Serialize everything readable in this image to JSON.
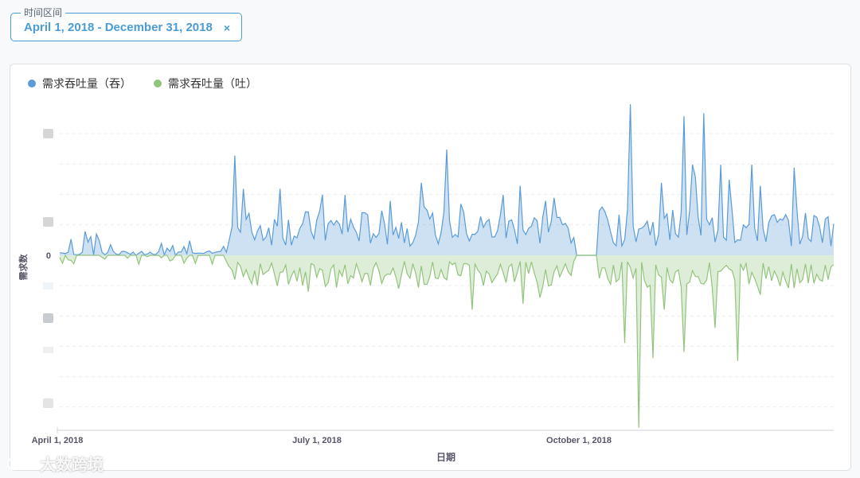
{
  "filter": {
    "label": "时间区间",
    "value": "April 1, 2018 - December 31, 2018",
    "clear_icon": "×"
  },
  "legend": [
    {
      "name": "需求吞吐量（吞）",
      "color": "#5a9bd8"
    },
    {
      "name": "需求吞吐量（吐）",
      "color": "#93c47d"
    }
  ],
  "chart_data": {
    "type": "area",
    "xlabel": "日期",
    "ylabel": "需求数",
    "x_start": "2018-04-01",
    "x_end": "2018-12-31",
    "x_tick_labels": [
      "April 1, 2018",
      "July 1, 2018",
      "October 1, 2018"
    ],
    "y_tick_labels": [
      "0"
    ],
    "grid": true,
    "legend_position": "top-left",
    "series": [
      {
        "name": "需求吞吐量（吞）",
        "color": "#5a9bd8",
        "values": [
          0,
          0,
          1,
          0,
          0,
          0,
          0,
          0,
          0,
          0,
          1,
          0,
          0,
          0,
          0,
          0,
          0,
          0,
          0,
          0,
          1,
          0,
          0,
          0,
          0,
          0,
          0,
          0,
          0,
          0,
          0,
          0,
          0,
          0,
          1,
          0,
          0,
          0,
          0,
          0,
          0,
          0,
          0,
          0,
          1,
          0,
          1,
          0,
          0,
          0,
          0,
          0,
          0,
          0,
          0,
          0,
          0,
          0,
          0,
          0,
          0,
          0,
          0,
          0,
          1,
          0,
          0,
          0,
          0,
          0,
          0,
          0,
          1,
          0,
          0,
          0,
          1,
          3,
          0,
          1,
          0,
          0,
          0,
          0,
          0,
          0,
          0,
          0,
          1,
          0,
          0,
          1,
          0,
          0,
          0,
          0,
          1,
          3,
          0,
          1,
          0,
          1,
          0,
          2,
          0,
          0,
          1,
          0,
          0,
          0,
          0,
          0,
          0,
          0,
          1,
          0,
          2,
          0,
          0,
          0,
          0,
          0,
          1,
          0,
          1,
          0,
          1,
          0,
          0,
          0,
          0,
          0,
          1,
          0,
          0,
          0,
          1,
          0,
          0,
          0,
          0,
          0,
          0,
          0,
          0,
          0,
          0,
          0,
          0,
          0,
          1,
          0,
          0,
          0,
          0,
          0,
          0,
          0,
          0,
          0,
          0,
          0,
          0,
          0,
          0,
          0,
          1,
          0,
          0,
          0,
          0,
          1,
          0,
          0,
          0,
          0,
          0,
          0,
          0,
          0,
          0,
          0,
          0,
          0,
          2,
          0,
          0,
          0,
          0,
          0,
          0,
          0,
          0,
          0,
          0,
          0,
          0,
          0,
          0,
          0,
          1,
          0,
          0,
          0,
          1,
          3,
          0,
          1,
          0,
          0,
          0,
          0,
          0,
          0,
          0,
          0,
          1,
          0,
          0,
          1,
          0,
          0,
          0,
          0,
          1,
          3,
          0,
          1,
          0,
          1,
          0,
          2,
          0,
          0,
          1,
          0,
          0,
          0,
          0,
          0,
          0,
          0,
          1,
          0,
          2,
          0,
          0,
          0,
          0,
          0,
          1,
          0,
          1,
          0,
          1,
          0,
          0,
          0,
          0,
          0,
          1,
          0,
          0,
          0,
          0,
          0,
          0,
          0,
          0,
          0,
          0,
          0,
          0,
          0,
          0,
          0,
          0,
          0,
          0,
          0,
          0,
          0,
          0,
          0,
          0,
          0,
          0,
          0,
          0,
          0,
          0,
          0,
          0,
          0
        ]
      },
      {
        "name": "需求吞吐量（吐）",
        "color": "#93c47d",
        "values": [
          0,
          0,
          0,
          0,
          0,
          0,
          0,
          0,
          0,
          0,
          0,
          0,
          0,
          0,
          0,
          0,
          0,
          0,
          0,
          0,
          0,
          0,
          0,
          0,
          0,
          0,
          0,
          0,
          0,
          0,
          0,
          0,
          0,
          0,
          0,
          0,
          0,
          0,
          0,
          0,
          0,
          0,
          0,
          0,
          0,
          0,
          0,
          0,
          0,
          0,
          0,
          0,
          0,
          0,
          0,
          0,
          0,
          0,
          0,
          0,
          0,
          0,
          0,
          0,
          0,
          0,
          0,
          0,
          0,
          0,
          0,
          0,
          0,
          0,
          0,
          0,
          0,
          0,
          0,
          0,
          0,
          0,
          0,
          0,
          0,
          0,
          0,
          0,
          0,
          0,
          0,
          0,
          0,
          0,
          0,
          0,
          0,
          0,
          0,
          0,
          0,
          0,
          0,
          0,
          0,
          0,
          0,
          0,
          0,
          0,
          0,
          0,
          0,
          0,
          0,
          0,
          0,
          0,
          0,
          0,
          0,
          0,
          0,
          0,
          0,
          0,
          0,
          0,
          0,
          0,
          0,
          0,
          0,
          0,
          0,
          0,
          0,
          0,
          0,
          0,
          0,
          0,
          0,
          0,
          0,
          0,
          0,
          0,
          0,
          0,
          0,
          0,
          0,
          0,
          0,
          0,
          0,
          0,
          0,
          0,
          0,
          0,
          0,
          0,
          0,
          0,
          0,
          0,
          0,
          0,
          0,
          0,
          0,
          0,
          0,
          0,
          0,
          0,
          0,
          0,
          0,
          0,
          0,
          0,
          0,
          0,
          0,
          0,
          0,
          0,
          0,
          0,
          0,
          0,
          0,
          0,
          0,
          0,
          0,
          0,
          0,
          0,
          0,
          0,
          0,
          0,
          0,
          0,
          0,
          0,
          0,
          0,
          0,
          0,
          0,
          0,
          0,
          0,
          0,
          0,
          0,
          0,
          0,
          0,
          0,
          0,
          0,
          0,
          0,
          0,
          0,
          0,
          0,
          0,
          0,
          0,
          0,
          0,
          0,
          0,
          0,
          0,
          0,
          0,
          0,
          0,
          0,
          0,
          0,
          0,
          0,
          0,
          0,
          0,
          0,
          0,
          0,
          0,
          0,
          0,
          0,
          0,
          0,
          0,
          0,
          0,
          0,
          0,
          0,
          0,
          0,
          0,
          0,
          0,
          0,
          0,
          0,
          0,
          0,
          0,
          0,
          0
        ]
      }
    ]
  },
  "watermark": "大数跨境"
}
